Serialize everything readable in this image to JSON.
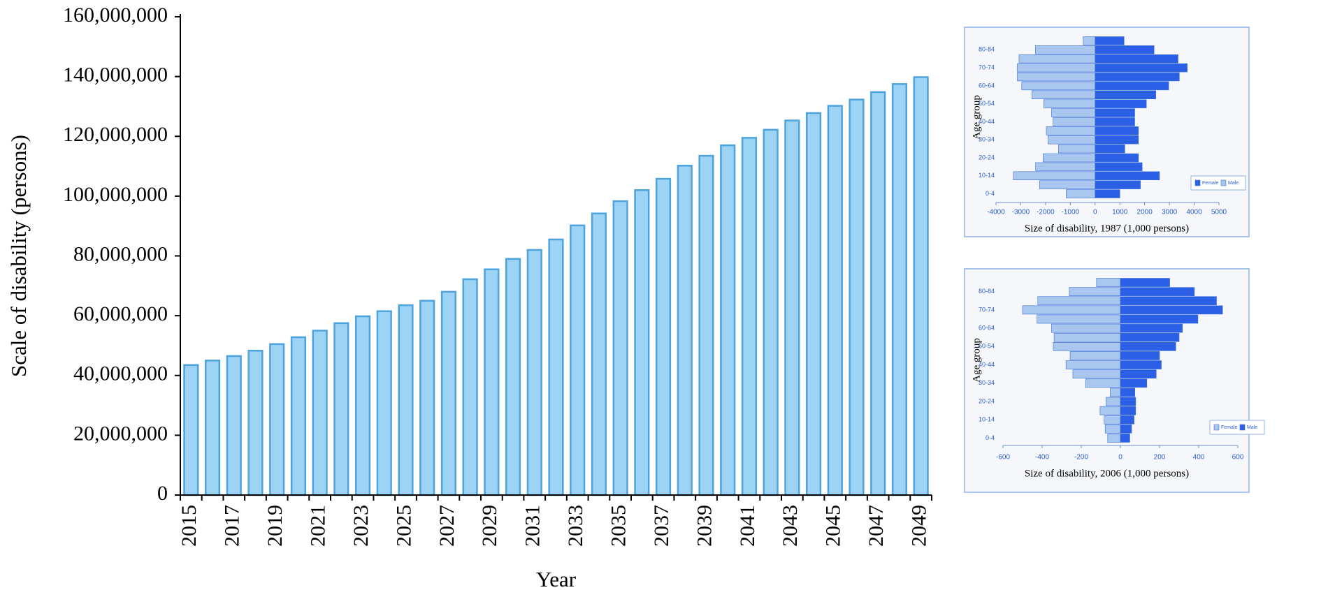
{
  "chart_data": [
    {
      "type": "bar",
      "x_label": "Year",
      "y_label": "Scale of disability (persons)",
      "categories": [
        "2015",
        null,
        "2017",
        null,
        "2019",
        null,
        "2021",
        null,
        "2023",
        null,
        "2025",
        null,
        "2027",
        null,
        "2029",
        null,
        "2031",
        null,
        "2033",
        null,
        "2035",
        null,
        "2037",
        null,
        "2039",
        null,
        "2041",
        null,
        "2043",
        null,
        "2045",
        null,
        "2047",
        null,
        "2049"
      ],
      "values": [
        43500000,
        45000000,
        46500000,
        48300000,
        50500000,
        52800000,
        55000000,
        57500000,
        59800000,
        61500000,
        63500000,
        65000000,
        68000000,
        72200000,
        75500000,
        79000000,
        82000000,
        85500000,
        90200000,
        94200000,
        98300000,
        102000000,
        105800000,
        110200000,
        113500000,
        117000000,
        119500000,
        122200000,
        125300000,
        127800000,
        130200000,
        132300000,
        134800000,
        137500000,
        139800000
      ],
      "color": "#9dd3f5",
      "ylim": [
        0,
        160000000
      ],
      "yticks": [
        0,
        {
          "value": 20000000,
          "label": "20,000,000"
        },
        {
          "value": 40000000,
          "label": "40,000,000"
        },
        {
          "value": 60000000,
          "label": "60,000,000"
        },
        {
          "value": 80000000,
          "label": "80,000,000"
        },
        {
          "value": 100000000,
          "label": "100,000,000"
        },
        {
          "value": 120000000,
          "label": "120,000,000"
        },
        {
          "value": 140000000,
          "label": "140,000,000"
        },
        {
          "value": 160000000,
          "label": "160,000,000"
        }
      ]
    },
    {
      "type": "pyramid",
      "x_label": "Size of disability, 1987 (1,000 persons)",
      "y_label": "Age group",
      "categories": [
        "0-4",
        null,
        "10-14",
        null,
        "20-24",
        null,
        "30-34",
        null,
        "40-44",
        null,
        "50-54",
        null,
        "60-64",
        null,
        "70-74",
        null,
        "80-84",
        null
      ],
      "series": [
        {
          "name": "Female",
          "color": "#2b5fe6",
          "values": [
            1000,
            1830,
            2600,
            1900,
            1750,
            1200,
            1750,
            1750,
            1600,
            1600,
            2070,
            2450,
            2970,
            3400,
            3720,
            3350,
            2380,
            1170
          ]
        },
        {
          "name": "Male",
          "color": "#a9c6ef",
          "values": [
            -1170,
            -2240,
            -3300,
            -2400,
            -2100,
            -1480,
            -1900,
            -1970,
            -1700,
            -1760,
            -2070,
            -2550,
            -2960,
            -3140,
            -3140,
            -3070,
            -2410,
            -480
          ]
        }
      ],
      "xlim": [
        -4000,
        5000
      ],
      "xticks": [
        -4000,
        -3000,
        -2000,
        -1000,
        0,
        1000,
        2000,
        3000,
        4000,
        5000
      ],
      "legend": "lower right"
    },
    {
      "type": "pyramid",
      "x_label": "Size of disability, 2006 (1,000 persons)",
      "y_label": "Age group",
      "categories": [
        "0-4",
        null,
        "10-14",
        null,
        "20-24",
        null,
        "30-34",
        null,
        "40-44",
        null,
        "50-54",
        null,
        "60-64",
        null,
        "70-74",
        null,
        "80-84",
        null
      ],
      "series": [
        {
          "name": "Female",
          "color": "#a9c6ef",
          "values": [
            -65,
            -78,
            -83,
            -104,
            -74,
            -52,
            -178,
            -243,
            -278,
            -257,
            -343,
            -339,
            -352,
            -426,
            -500,
            -422,
            -261,
            -122
          ]
        },
        {
          "name": "Male",
          "color": "#2b5fe6",
          "values": [
            48,
            57,
            70,
            78,
            78,
            74,
            135,
            183,
            209,
            200,
            283,
            300,
            317,
            396,
            522,
            491,
            378,
            252
          ]
        }
      ],
      "xlim": [
        -600,
        600
      ],
      "xticks": [
        -600,
        -400,
        -200,
        0,
        200,
        400,
        600
      ],
      "legend": "lower right"
    }
  ]
}
